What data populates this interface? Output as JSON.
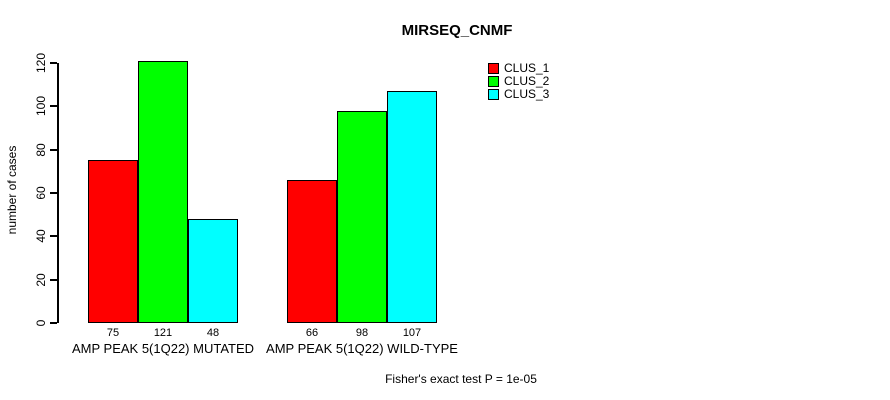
{
  "title": "MIRSEQ_CNMF",
  "footer": "Fisher's exact test P = 1e-05",
  "chart_data": {
    "type": "bar",
    "title": "MIRSEQ_CNMF",
    "xlabel": "",
    "ylabel": "number of cases",
    "ylim": [
      0,
      120
    ],
    "yticks": [
      0,
      20,
      40,
      60,
      80,
      100,
      120
    ],
    "grid": false,
    "legend_position": "top-right",
    "bar_border_color": "#000000",
    "value_labels_shown": true,
    "categories": [
      "AMP PEAK 5(1Q22) MUTATED",
      "AMP PEAK 5(1Q22) WILD-TYPE"
    ],
    "series": [
      {
        "name": "CLUS_1",
        "color": "#ff0000",
        "values": [
          75,
          66
        ]
      },
      {
        "name": "CLUS_2",
        "color": "#00ff00",
        "values": [
          121,
          98
        ]
      },
      {
        "name": "CLUS_3",
        "color": "#00ffff",
        "values": [
          48,
          107
        ]
      }
    ],
    "annotation": "Fisher's exact test P = 1e-05"
  }
}
